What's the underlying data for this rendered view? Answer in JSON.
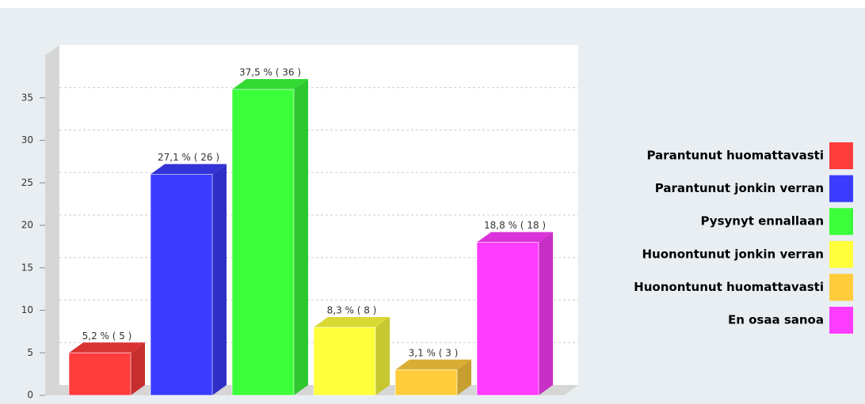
{
  "chart_data": {
    "type": "bar3d",
    "categories": [
      "Parantunut huomattavasti",
      "Parantunut jonkin verran",
      "Pysynyt ennallaan",
      "Huonontunut jonkin verran",
      "Huonontunut huomattavasti",
      "En osaa sanoa"
    ],
    "values": [
      5,
      26,
      36,
      8,
      3,
      18
    ],
    "value_labels": [
      "5,2 % ( 5 )",
      "27,1 % ( 26 )",
      "37,5 % ( 36 )",
      "8,3 % ( 8 )",
      "3,1 % ( 3 )",
      "18,8 % ( 18 )"
    ],
    "colors": [
      "#ff3c3c",
      "#3c3cff",
      "#3cff3c",
      "#ffff3c",
      "#ffcc3c",
      "#ff3cff"
    ],
    "ylim": [
      0,
      40
    ],
    "yticks": [
      0,
      5,
      10,
      15,
      20,
      25,
      30,
      35
    ],
    "grid": true,
    "legend": "right"
  }
}
